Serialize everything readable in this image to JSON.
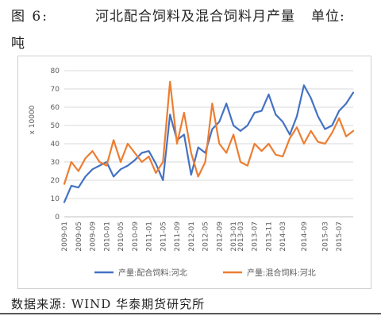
{
  "header": {
    "figure_label": "图 6:",
    "title": "河北配合饲料及混合饲料月产量",
    "unit_label": "单位:",
    "unit_value": "吨"
  },
  "source": "数据来源: WIND 华泰期货研究所",
  "colors": {
    "series_1": "#4472c4",
    "series_2": "#ed7d31",
    "grid": "#d9d9d9",
    "axis": "#bfbfbf"
  },
  "chart_data": {
    "type": "line",
    "ylabel": "x 10000",
    "ylim": [
      0,
      80
    ],
    "yticks": [
      0,
      10,
      20,
      30,
      40,
      50,
      60,
      70,
      80
    ],
    "grid": "horizontal",
    "legend_position": "bottom",
    "x_tick_labels": [
      "2009-01",
      "2009-05",
      "2009-09",
      "2010-01",
      "2010-05",
      "2010-09",
      "2011-01",
      "2011-05",
      "2011-09",
      "2012-01",
      "2012-05",
      "2012-09",
      "2013-01",
      "2013-03",
      "2013-07",
      "2013-11",
      "2014-03",
      "2014-09",
      "2015-03",
      "2015-07"
    ],
    "x": [
      "2009-01",
      "2009-03",
      "2009-05",
      "2009-07",
      "2009-09",
      "2009-11",
      "2010-01",
      "2010-03",
      "2010-05",
      "2010-07",
      "2010-09",
      "2010-11",
      "2011-01",
      "2011-03",
      "2011-05",
      "2011-07",
      "2011-09",
      "2011-11",
      "2012-01",
      "2012-03",
      "2012-05",
      "2012-07",
      "2012-09",
      "2012-11",
      "2013-01",
      "2013-03",
      "2013-05",
      "2013-07",
      "2013-09",
      "2013-11",
      "2014-01",
      "2014-03",
      "2014-05",
      "2014-07",
      "2014-09",
      "2014-11",
      "2015-01",
      "2015-03",
      "2015-05",
      "2015-07",
      "2015-09",
      "2015-11"
    ],
    "series": [
      {
        "name": "产量:配合饲料:河北",
        "color": "#4472c4",
        "values": [
          8,
          17,
          16,
          22,
          26,
          28,
          30,
          22,
          26,
          28,
          31,
          35,
          36,
          29,
          20,
          56,
          42,
          45,
          23,
          38,
          35,
          48,
          52,
          62,
          50,
          47,
          50,
          57,
          58,
          67,
          56,
          52,
          45,
          55,
          72,
          65,
          55,
          48,
          50,
          58,
          62,
          68
        ]
      },
      {
        "name": "产量:混合饲料:河北",
        "color": "#ed7d31",
        "values": [
          18,
          30,
          25,
          32,
          36,
          30,
          28,
          42,
          30,
          40,
          35,
          30,
          33,
          24,
          30,
          74,
          40,
          57,
          35,
          22,
          30,
          62,
          40,
          35,
          45,
          30,
          28,
          40,
          36,
          40,
          34,
          33,
          43,
          49,
          40,
          47,
          41,
          40,
          46,
          54,
          44,
          47
        ]
      }
    ]
  }
}
